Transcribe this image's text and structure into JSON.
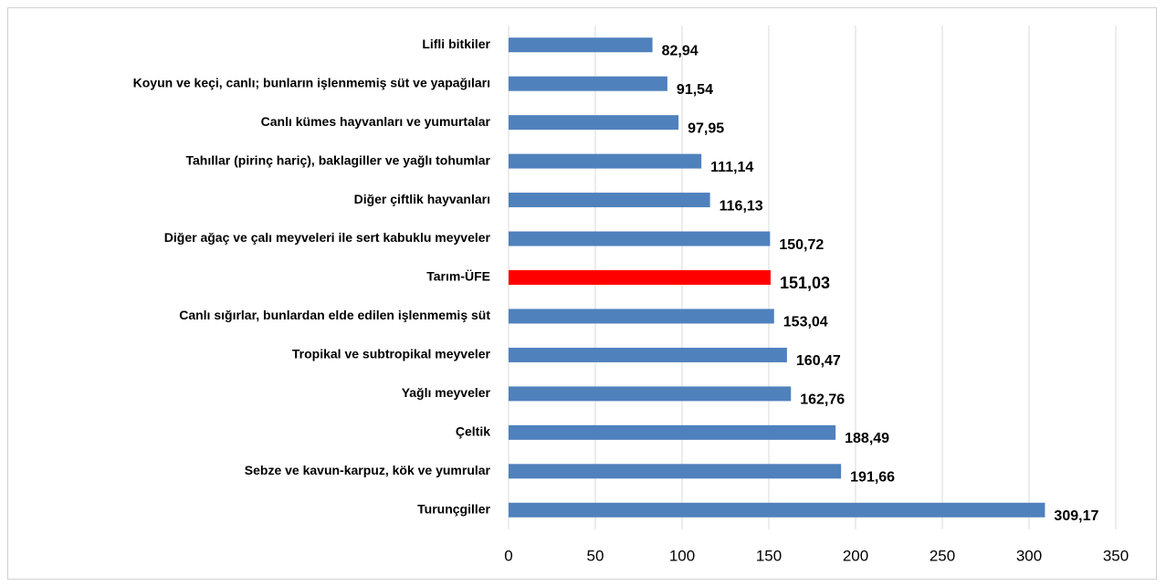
{
  "chart_data": {
    "type": "hbar",
    "categories": [
      "Lifli bitkiler",
      "Koyun ve keçi, canlı; bunların işlenmemiş süt ve yapağıları",
      "Canlı kümes hayvanları ve yumurtalar",
      "Tahıllar (pirinç hariç), baklagiller ve yağlı tohumlar",
      "Diğer çiftlik hayvanları",
      "Diğer ağaç ve çalı meyveleri ile sert kabuklu meyveler",
      "Tarım-ÜFE",
      "Canlı sığırlar, bunlardan elde edilen işlenmemiş süt",
      "Tropikal ve subtropikal meyveler",
      "Yağlı meyveler",
      "Çeltik",
      "Sebze ve kavun-karpuz, kök ve yumrular",
      "Turunçgiller"
    ],
    "values": [
      82.94,
      91.54,
      97.95,
      111.14,
      116.13,
      150.72,
      151.03,
      153.04,
      160.47,
      162.76,
      188.49,
      191.66,
      309.17
    ],
    "value_labels": [
      "82,94",
      "91,54",
      "97,95",
      "111,14",
      "116,13",
      "150,72",
      "151,03",
      "153,04",
      "160,47",
      "162,76",
      "188,49",
      "191,66",
      "309,17"
    ],
    "colors": [
      "#4f81bd",
      "#4f81bd",
      "#4f81bd",
      "#4f81bd",
      "#4f81bd",
      "#4f81bd",
      "#ff0000",
      "#4f81bd",
      "#4f81bd",
      "#4f81bd",
      "#4f81bd",
      "#4f81bd",
      "#4f81bd"
    ],
    "xlim": [
      0,
      350
    ],
    "xticks": [
      0,
      50,
      100,
      150,
      200,
      250,
      300,
      350
    ],
    "grid": true
  }
}
